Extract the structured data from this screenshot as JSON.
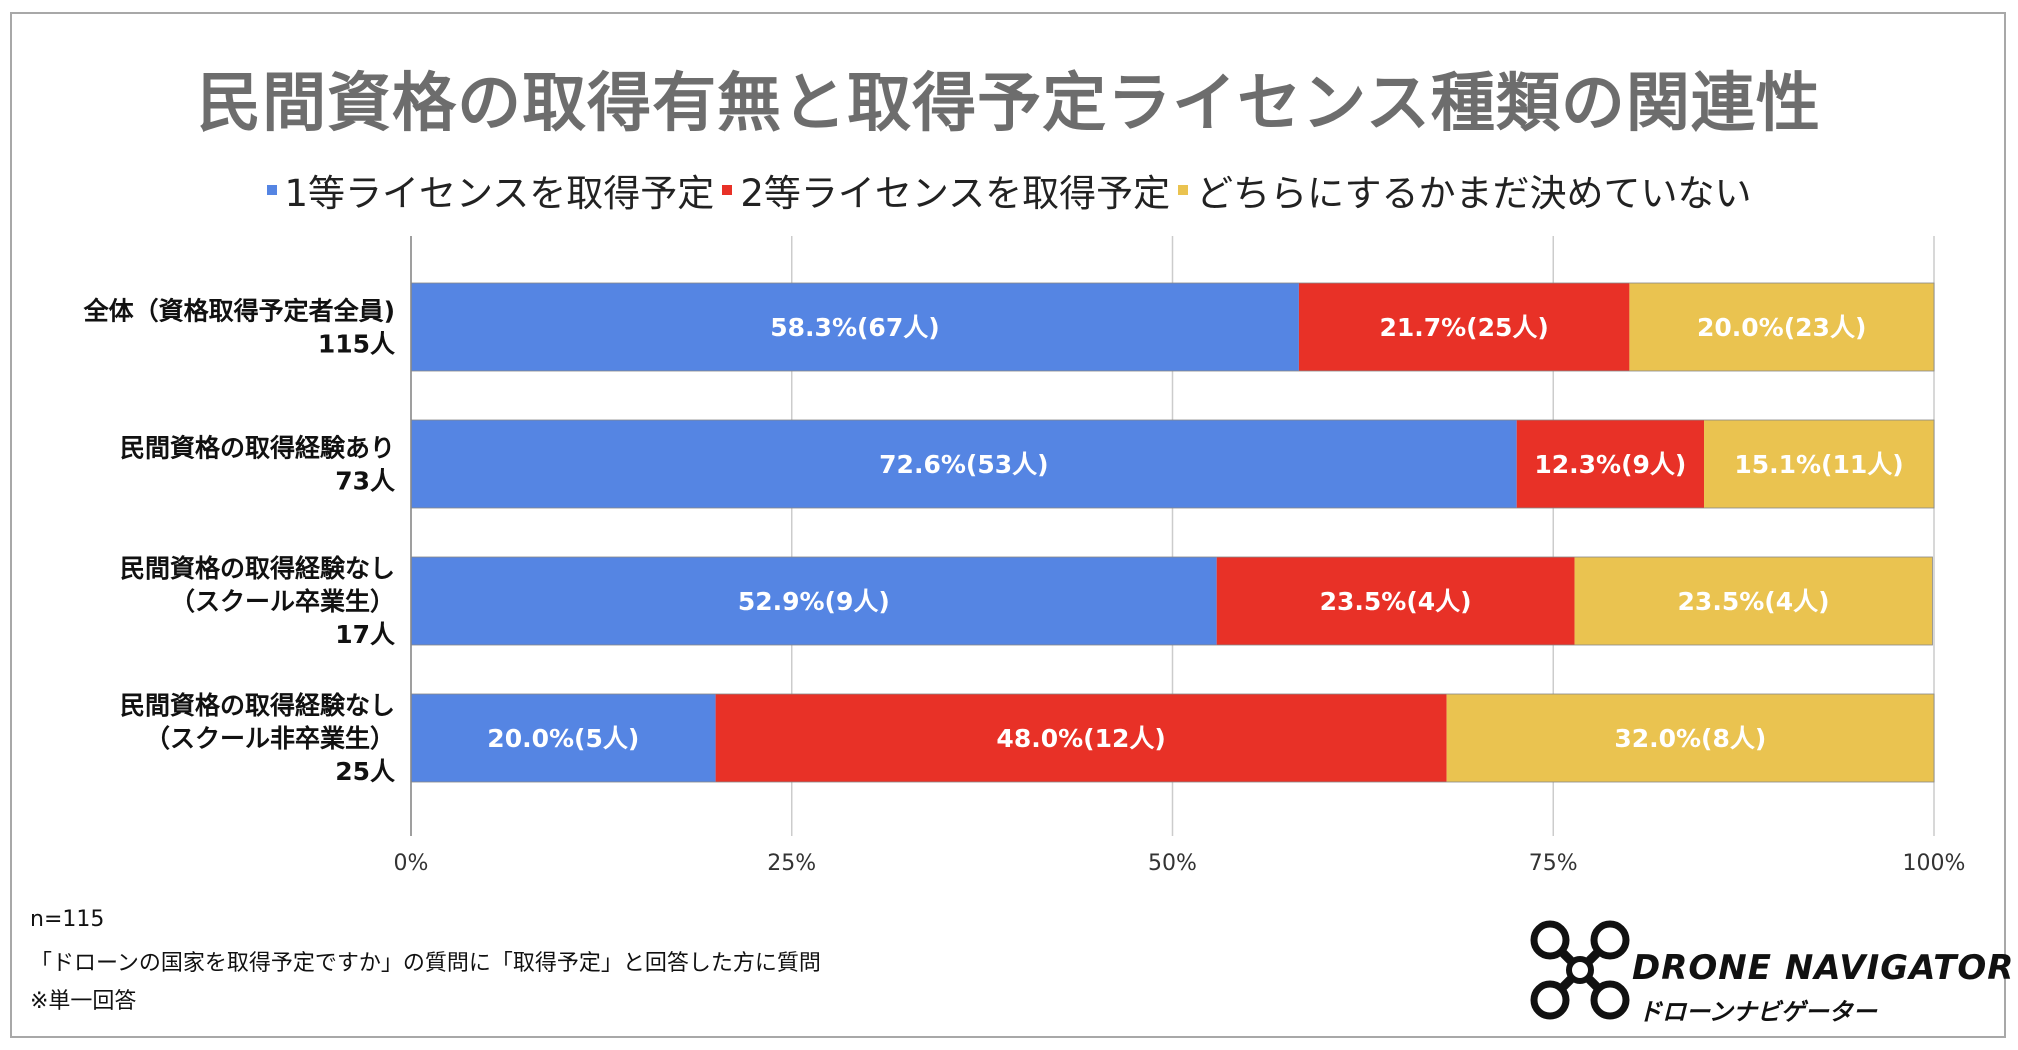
{
  "chart_data": {
    "type": "bar",
    "orientation": "horizontal",
    "stacked": true,
    "title": "民間資格の取得有無と取得予定ライセンス種類の関連性",
    "categories": [
      [
        "全体（資格取得予定者全員)",
        "115人"
      ],
      [
        "民間資格の取得経験あり",
        "73人"
      ],
      [
        "民間資格の取得経験なし",
        "（スクール卒業生）",
        "17人"
      ],
      [
        "民間資格の取得経験なし",
        "（スクール非卒業生）",
        "25人"
      ]
    ],
    "series": [
      {
        "name": "1等ライセンスを取得予定",
        "color": "#5585e3",
        "values": [
          58.3,
          72.6,
          52.9,
          20.0
        ],
        "labels": [
          "58.3%(67人)",
          "72.6%(53人)",
          "52.9%(9人)",
          "20.0%(5人)"
        ]
      },
      {
        "name": "2等ライセンスを取得予定",
        "color": "#e83127",
        "values": [
          21.7,
          12.3,
          23.5,
          48.0
        ],
        "labels": [
          "21.7%(25人)",
          "12.3%(9人)",
          "23.5%(4人)",
          "48.0%(12人)"
        ]
      },
      {
        "name": "どちらにするかまだ決めていない",
        "color": "#eac350",
        "values": [
          20.0,
          15.1,
          23.5,
          32.0
        ],
        "labels": [
          "20.0%(23人)",
          "15.1%(11人)",
          "23.5%(4人)",
          "32.0%(8人)"
        ]
      }
    ],
    "xlim": [
      0,
      100
    ],
    "xticks": [
      "0%",
      "25%",
      "50%",
      "75%",
      "100%"
    ],
    "grid": true,
    "legend_position": "top"
  },
  "notes": {
    "n": "n=115",
    "question": "「ドローンの国家を取得予定ですか」の質問に「取得予定」と回答した方に質問",
    "single": "※単一回答"
  },
  "logo": {
    "main": "DRONE NAVIGATOR",
    "sub": "ドローンナビゲーター"
  }
}
